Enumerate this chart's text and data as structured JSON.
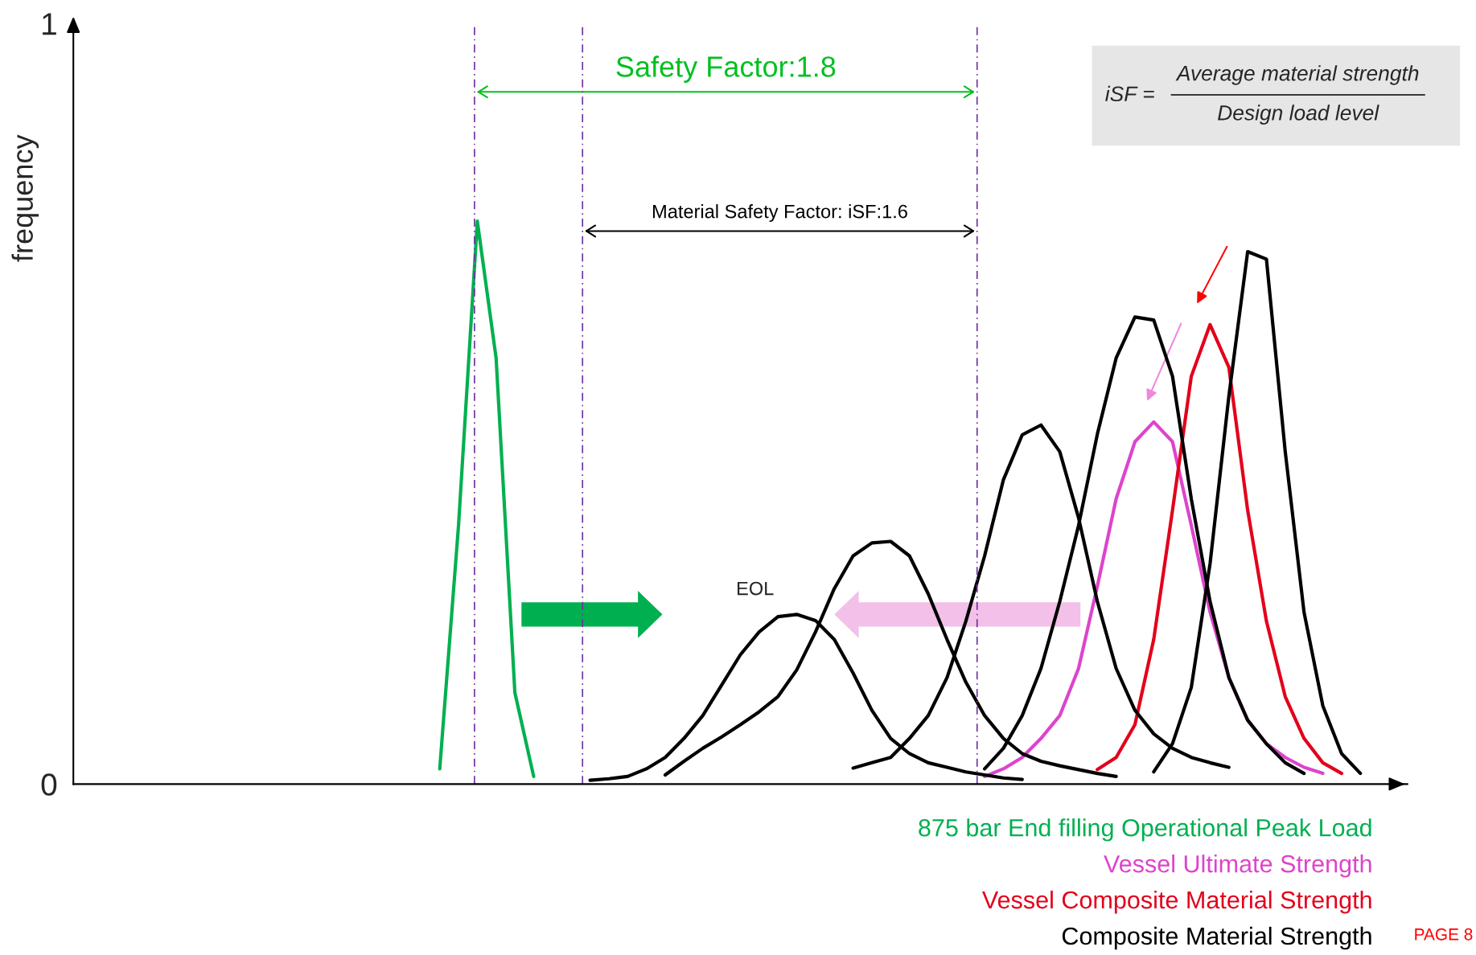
{
  "chart_data": {
    "type": "line",
    "ylabel": "frequency",
    "categories": [
      null,
      null,
      null,
      null,
      null,
      null,
      null,
      null,
      null,
      null,
      null,
      null,
      null,
      null,
      null,
      null,
      null,
      null,
      null,
      null,
      null,
      null,
      null,
      null,
      null,
      null,
      null,
      null,
      null,
      null,
      null,
      null,
      null,
      null,
      null,
      null,
      null,
      null,
      null,
      null,
      null,
      null,
      null,
      null,
      null,
      null,
      null,
      null,
      null,
      null,
      null,
      null,
      null,
      null,
      null,
      null,
      null,
      null,
      null,
      null,
      null,
      null,
      null,
      null,
      null,
      null,
      null,
      null,
      null,
      null,
      null
    ],
    "ylim": [
      0,
      1
    ],
    "yticks": [
      0,
      1
    ],
    "grid": false,
    "series": [
      {
        "name": "875 bar End filling Operational Peak Load",
        "color": "#00b050",
        "values": [
          null,
          null,
          null,
          null,
          null,
          null,
          null,
          null,
          null,
          null,
          null,
          null,
          null,
          null,
          null,
          null,
          null,
          null,
          null,
          0.02,
          0.34,
          0.74,
          0.56,
          0.12,
          0.01,
          null,
          null,
          null,
          null,
          null,
          null,
          null,
          null,
          null,
          null,
          null,
          null,
          null,
          null,
          null,
          null,
          null,
          null,
          null,
          null,
          null,
          null,
          null,
          null,
          null,
          null,
          null,
          null,
          null,
          null,
          null,
          null,
          null,
          null,
          null,
          null,
          null,
          null,
          null,
          null,
          null,
          null,
          null,
          null,
          null,
          null
        ]
      },
      {
        "name": "Vessel Ultimate Strength",
        "color": "#dd44cc",
        "values": [
          null,
          null,
          null,
          null,
          null,
          null,
          null,
          null,
          null,
          null,
          null,
          null,
          null,
          null,
          null,
          null,
          null,
          null,
          null,
          null,
          null,
          null,
          null,
          null,
          null,
          null,
          null,
          null,
          null,
          null,
          null,
          null,
          null,
          null,
          null,
          null,
          null,
          null,
          null,
          null,
          null,
          null,
          null,
          null,
          null,
          null,
          null,
          null,
          0.01,
          0.02,
          0.035,
          0.06,
          0.09,
          0.152,
          0.26,
          0.375,
          0.45,
          0.476,
          0.45,
          0.34,
          0.226,
          0.14,
          0.084,
          0.053,
          0.035,
          0.022,
          0.014,
          null,
          null,
          null,
          null
        ]
      },
      {
        "name": "Vessel Composite Material Strength",
        "color": "#e3001b",
        "values": [
          null,
          null,
          null,
          null,
          null,
          null,
          null,
          null,
          null,
          null,
          null,
          null,
          null,
          null,
          null,
          null,
          null,
          null,
          null,
          null,
          null,
          null,
          null,
          null,
          null,
          null,
          null,
          null,
          null,
          null,
          null,
          null,
          null,
          null,
          null,
          null,
          null,
          null,
          null,
          null,
          null,
          null,
          null,
          null,
          null,
          null,
          null,
          null,
          null,
          null,
          null,
          null,
          null,
          null,
          0.019,
          0.035,
          0.078,
          0.19,
          0.36,
          0.536,
          0.604,
          0.548,
          0.36,
          0.214,
          0.115,
          0.06,
          0.028,
          0.014,
          null,
          null,
          null
        ]
      },
      {
        "name": "Composite Material Strength",
        "color": "#000000",
        "values": [
          null,
          null,
          null,
          null,
          null,
          null,
          null,
          null,
          null,
          null,
          null,
          null,
          null,
          null,
          null,
          null,
          null,
          null,
          null,
          null,
          null,
          null,
          null,
          null,
          null,
          null,
          null,
          null,
          null,
          null,
          null,
          null,
          null,
          null,
          null,
          null,
          null,
          null,
          null,
          null,
          null,
          null,
          null,
          null,
          null,
          null,
          null,
          null,
          null,
          null,
          null,
          null,
          null,
          null,
          null,
          null,
          null,
          0.016,
          0.053,
          0.127,
          0.29,
          0.51,
          0.7,
          0.69,
          0.437,
          0.226,
          0.103,
          0.04,
          0.014,
          null,
          null
        ]
      },
      {
        "color": "#000000",
        "values": [
          null,
          null,
          null,
          null,
          null,
          null,
          null,
          null,
          null,
          null,
          null,
          null,
          null,
          null,
          null,
          null,
          null,
          null,
          null,
          null,
          null,
          null,
          null,
          null,
          null,
          null,
          null,
          0.005,
          0.007,
          0.01,
          0.02,
          0.035,
          0.06,
          0.09,
          0.13,
          0.17,
          0.2,
          0.22,
          0.223,
          0.215,
          0.19,
          0.146,
          0.097,
          0.06,
          0.04,
          0.028,
          0.022,
          0.016,
          0.012,
          0.008,
          0.006,
          null,
          null,
          null,
          null,
          null,
          null,
          null,
          null,
          null,
          null,
          null,
          null,
          null,
          null,
          null,
          null,
          null,
          null,
          null,
          null
        ]
      },
      {
        "color": "#000000",
        "values": [
          null,
          null,
          null,
          null,
          null,
          null,
          null,
          null,
          null,
          null,
          null,
          null,
          null,
          null,
          null,
          null,
          null,
          null,
          null,
          null,
          null,
          null,
          null,
          null,
          null,
          null,
          null,
          null,
          null,
          null,
          null,
          0.012,
          0.03,
          0.047,
          0.062,
          0.078,
          0.095,
          0.115,
          0.15,
          0.2,
          0.257,
          0.3,
          0.317,
          0.319,
          0.3,
          0.25,
          0.19,
          0.134,
          0.09,
          0.06,
          0.04,
          0.03,
          0.024,
          0.019,
          0.014,
          0.01,
          null,
          null,
          null,
          null,
          null,
          null,
          null,
          null,
          null,
          null,
          null,
          null,
          null,
          null,
          null
        ]
      },
      {
        "color": "#000000",
        "values": [
          null,
          null,
          null,
          null,
          null,
          null,
          null,
          null,
          null,
          null,
          null,
          null,
          null,
          null,
          null,
          null,
          null,
          null,
          null,
          null,
          null,
          null,
          null,
          null,
          null,
          null,
          null,
          null,
          null,
          null,
          null,
          null,
          null,
          null,
          null,
          null,
          null,
          null,
          null,
          null,
          null,
          0.021,
          0.028,
          0.035,
          0.06,
          0.09,
          0.14,
          0.214,
          0.3,
          0.4,
          0.459,
          0.472,
          0.437,
          0.35,
          0.24,
          0.152,
          0.097,
          0.066,
          0.047,
          0.035,
          0.028,
          0.022,
          null,
          null,
          null,
          null,
          null,
          null,
          null,
          null,
          null
        ]
      },
      {
        "color": "#000000",
        "values": [
          null,
          null,
          null,
          null,
          null,
          null,
          null,
          null,
          null,
          null,
          null,
          null,
          null,
          null,
          null,
          null,
          null,
          null,
          null,
          null,
          null,
          null,
          null,
          null,
          null,
          null,
          null,
          null,
          null,
          null,
          null,
          null,
          null,
          null,
          null,
          null,
          null,
          null,
          null,
          null,
          null,
          null,
          null,
          null,
          null,
          null,
          null,
          null,
          0.02,
          0.047,
          0.09,
          0.152,
          0.24,
          0.34,
          0.46,
          0.56,
          0.614,
          0.61,
          0.536,
          0.375,
          0.24,
          0.14,
          0.084,
          0.053,
          0.028,
          0.014,
          null,
          null,
          null,
          null,
          null
        ]
      }
    ],
    "annotations": [
      "Safety Factor:1.8",
      "Material Safety Factor: iSF:1.6",
      "EOL",
      "iSF =",
      "Average material strength",
      "Design load level",
      "PAGE 8"
    ]
  }
}
